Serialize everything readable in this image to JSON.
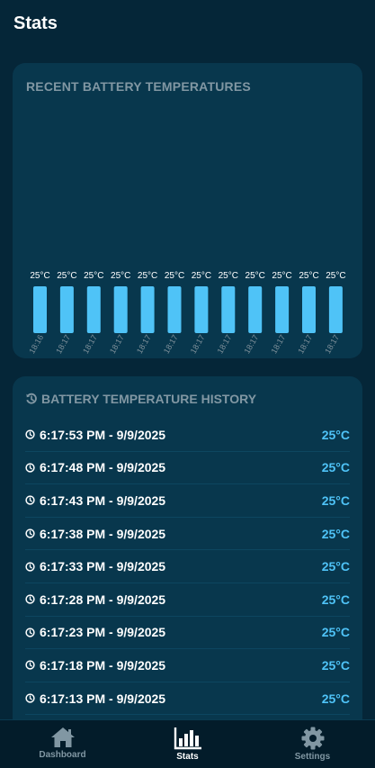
{
  "header": {
    "title": "Stats"
  },
  "chart_card": {
    "title": "RECENT BATTERY TEMPERATURES"
  },
  "chart_data": {
    "type": "bar",
    "categories": [
      "18:16",
      "18:17",
      "18:17",
      "18:17",
      "18:17",
      "18:17",
      "18:17",
      "18:17",
      "18:17",
      "18:17",
      "18:17",
      "18:17"
    ],
    "values": [
      25,
      25,
      25,
      25,
      25,
      25,
      25,
      25,
      25,
      25,
      25,
      25
    ],
    "data_labels": [
      "25°C",
      "25°C",
      "25°C",
      "25°C",
      "25°C",
      "25°C",
      "25°C",
      "25°C",
      "25°C",
      "25°C",
      "25°C",
      "25°C"
    ],
    "ylim": [
      0,
      25
    ],
    "title": "RECENT BATTERY TEMPERATURES",
    "xlabel": "",
    "ylabel": "",
    "bar_color": "#4fc3f7",
    "grid": false
  },
  "history": {
    "title": "BATTERY TEMPERATURE HISTORY",
    "title_icon": "history-icon",
    "row_icon": "clock-icon",
    "rows": [
      {
        "time": "6:17:53 PM - 9/9/2025",
        "temp": "25°C"
      },
      {
        "time": "6:17:48 PM - 9/9/2025",
        "temp": "25°C"
      },
      {
        "time": "6:17:43 PM - 9/9/2025",
        "temp": "25°C"
      },
      {
        "time": "6:17:38 PM - 9/9/2025",
        "temp": "25°C"
      },
      {
        "time": "6:17:33 PM - 9/9/2025",
        "temp": "25°C"
      },
      {
        "time": "6:17:28 PM - 9/9/2025",
        "temp": "25°C"
      },
      {
        "time": "6:17:23 PM - 9/9/2025",
        "temp": "25°C"
      },
      {
        "time": "6:17:18 PM - 9/9/2025",
        "temp": "25°C"
      },
      {
        "time": "6:17:13 PM - 9/9/2025",
        "temp": "25°C"
      }
    ]
  },
  "nav": {
    "items": [
      {
        "label": "Dashboard",
        "icon": "home-icon"
      },
      {
        "label": "Stats",
        "icon": "bar-chart-icon",
        "active": true
      },
      {
        "label": "Settings",
        "icon": "gear-icon"
      }
    ]
  },
  "colors": {
    "background": "#052638",
    "card": "#08374d",
    "accent": "#4fc3f7",
    "muted": "#8197a3"
  }
}
